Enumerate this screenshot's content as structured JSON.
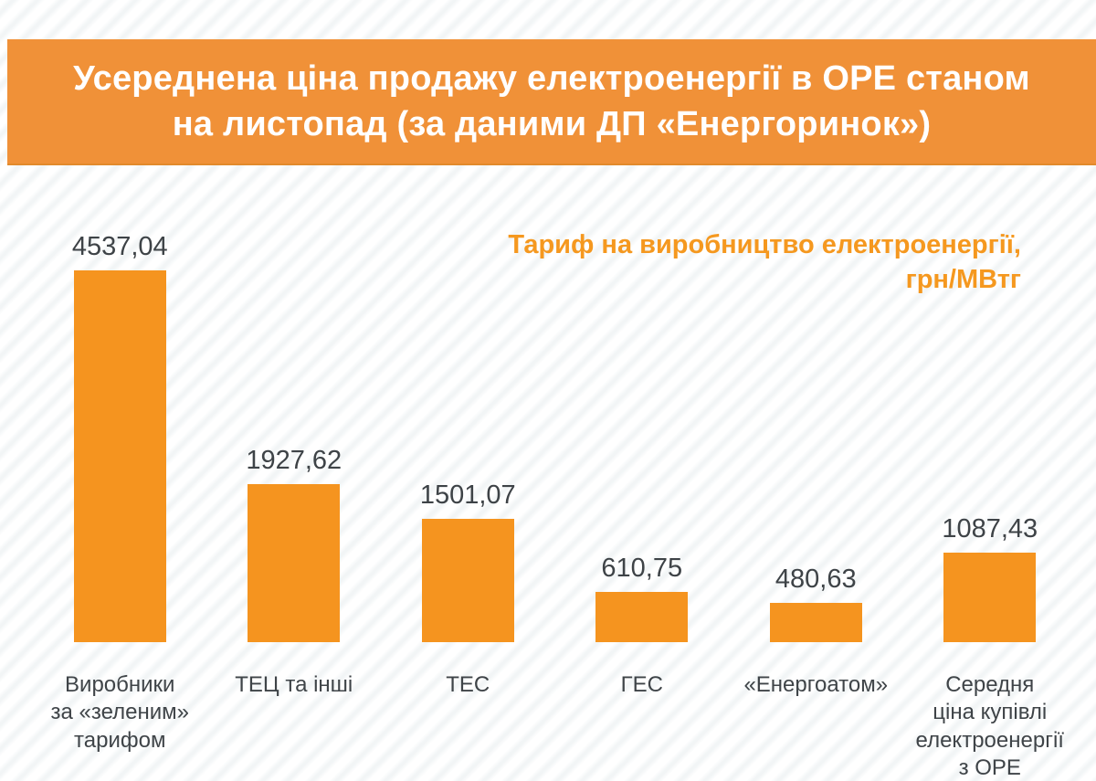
{
  "header": {
    "title": "Усереднена ціна продажу електроенергії в ОРЕ станом\nна листопад (за даними ДП «Енергоринок»)"
  },
  "subtitle": "Тариф на виробництво електроенергії,\nгрн/МВтг",
  "chart_data": {
    "type": "bar",
    "title": "Усереднена ціна продажу електроенергії в ОРЕ станом на листопад (за даними ДП «Енергоринок»)",
    "ylabel": "Тариф на виробництво електроенергії, грн/МВтг",
    "categories": [
      "Виробники\nза «зеленим»\nтарифом",
      "ТЕЦ та інші",
      "ТЕС",
      "ГЕС",
      "«Енергоатом»",
      "Середня\nціна купівлі\nелектроенергії\nз ОРЕ"
    ],
    "values": [
      4537.04,
      1927.62,
      1501.07,
      610.75,
      480.63,
      1087.43
    ],
    "value_labels": [
      "4537,04",
      "1927,62",
      "1501,07",
      "610,75",
      "480,63",
      "1087,43"
    ],
    "ymax": 4537.04,
    "grid": false,
    "legend": "none",
    "orientation": "vertical"
  },
  "colors": {
    "banner": "#F09138",
    "banner_edge": "#E28A2C",
    "banner_text": "#FFFFFF",
    "bar": "#F5941F",
    "subtitle_text": "#F5981F",
    "value_text": "#3E4347",
    "category_text": "#3F4448",
    "background_stripe": "#F2F5F6"
  }
}
